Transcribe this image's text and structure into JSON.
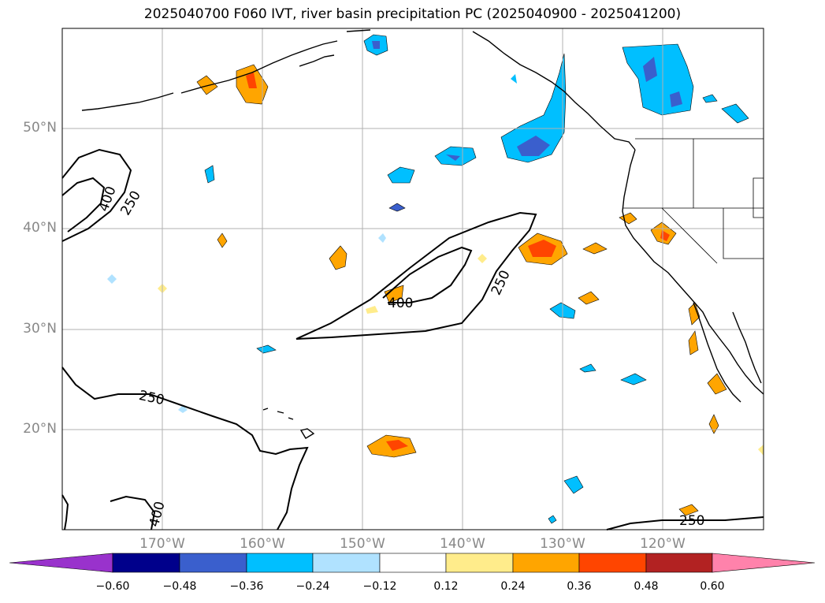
{
  "title": "2025040700 F060 IVT, river basin precipitation PC (2025040900 - 2025041200)",
  "lat_labels": [
    "50°N",
    "40°N",
    "30°N",
    "20°N"
  ],
  "lon_labels": [
    "170°W",
    "160°W",
    "150°W",
    "140°W",
    "130°W",
    "120°W"
  ],
  "contour_labels": [
    "400",
    "250",
    "400",
    "250",
    "250",
    "400",
    "250"
  ],
  "colorbar": {
    "ticks": [
      "−0.60",
      "−0.48",
      "−0.36",
      "−0.24",
      "−0.12",
      "0.12",
      "0.24",
      "0.36",
      "0.48",
      "0.60"
    ],
    "colors": [
      "#9932CC",
      "#00008B",
      "#3A5FCD",
      "#00BFFF",
      "#B0E2FF",
      "#FFFFFF",
      "#FFEC8B",
      "#FFA500",
      "#FF4500",
      "#B22222",
      "#FF82AB"
    ]
  },
  "colors": {
    "grid": "#b0b0b0",
    "coast": "#000000",
    "tick_label": "#888888"
  }
}
